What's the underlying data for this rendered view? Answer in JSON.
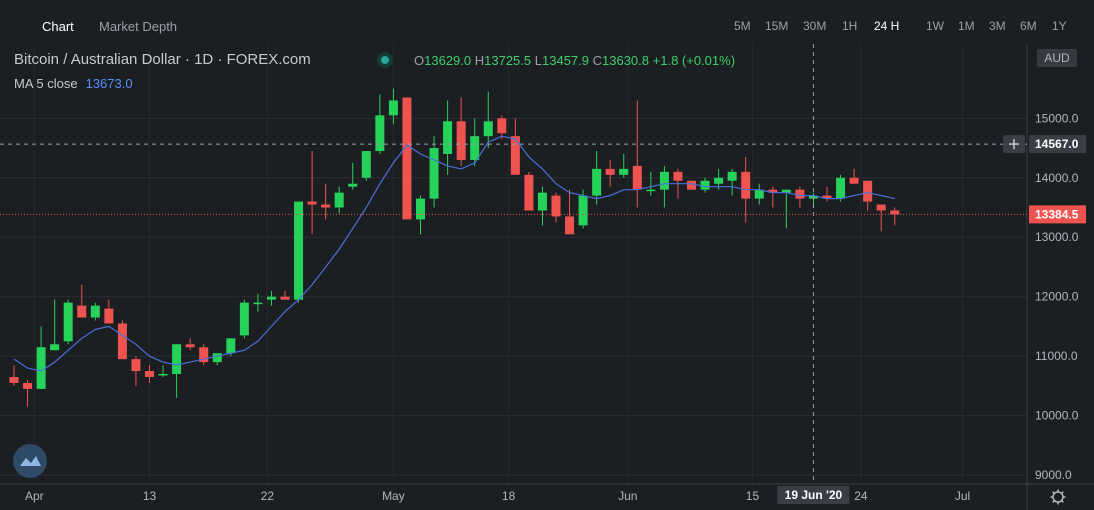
{
  "tabs": [
    {
      "label": "Chart",
      "active": true
    },
    {
      "label": "Market Depth",
      "active": false
    }
  ],
  "timeframes": [
    "5M",
    "15M",
    "30M",
    "1H",
    "24 H",
    "1W",
    "1M",
    "3M",
    "6M",
    "1Y"
  ],
  "active_timeframe": "24 H",
  "symbol_title": "Bitcoin / Australian Dollar · 1D · FOREX.com",
  "ohlc": {
    "o_label": "O",
    "o": "13629.0",
    "h_label": "H",
    "h": "13725.5",
    "l_label": "L",
    "l": "13457.9",
    "c_label": "C",
    "c": "13630.8",
    "change": "+1.8 (+0.01%)"
  },
  "ma_label": "MA 5 close",
  "ma_value": "13673.0",
  "currency_badge": "AUD",
  "crosshair_price": "14567.0",
  "last_price": "13384.5",
  "crosshair_date": "19 Jun '20",
  "colors": {
    "up": "#26d35a",
    "down": "#ef5350",
    "ma": "#4a6fdc",
    "bg": "#1c1f22"
  },
  "chart_data": {
    "type": "candlestick",
    "y_ticks": [
      "9000.0",
      "10000.0",
      "11000.0",
      "12000.0",
      "13000.0",
      "14000.0",
      "15000.0"
    ],
    "ylim": [
      8850,
      16250
    ],
    "x_ticks": [
      "Apr",
      "13",
      "22",
      "May",
      "18",
      "Jun",
      "15",
      "24",
      "Jul"
    ],
    "series": [
      {
        "name": "OHLC",
        "values": [
          [
            10650,
            10850,
            10500,
            10550
          ],
          [
            10550,
            10600,
            10150,
            10450
          ],
          [
            10450,
            11500,
            10450,
            11150
          ],
          [
            11100,
            11950,
            11100,
            11200
          ],
          [
            11250,
            11950,
            11200,
            11900
          ],
          [
            11850,
            12200,
            11700,
            11650
          ],
          [
            11650,
            11900,
            11600,
            11850
          ],
          [
            11800,
            11950,
            11600,
            11550
          ],
          [
            11550,
            11600,
            11000,
            10950
          ],
          [
            10950,
            11000,
            10500,
            10750
          ],
          [
            10750,
            10850,
            10550,
            10650
          ],
          [
            10700,
            10850,
            10650,
            10700
          ],
          [
            10700,
            11200,
            10300,
            11200
          ],
          [
            11200,
            11300,
            11100,
            11150
          ],
          [
            11150,
            11200,
            10850,
            10900
          ],
          [
            10900,
            11000,
            10850,
            11050
          ],
          [
            11050,
            11300,
            11000,
            11300
          ],
          [
            11350,
            11950,
            11300,
            11900
          ],
          [
            11900,
            12050,
            11750,
            11900
          ],
          [
            11950,
            12100,
            11850,
            12000
          ],
          [
            12000,
            12100,
            11950,
            11950
          ],
          [
            11950,
            13600,
            11900,
            13600
          ],
          [
            13600,
            14450,
            13050,
            13550
          ],
          [
            13550,
            13900,
            13300,
            13500
          ],
          [
            13500,
            13850,
            13400,
            13750
          ],
          [
            13850,
            14250,
            13800,
            13900
          ],
          [
            14000,
            14400,
            13950,
            14450
          ],
          [
            14450,
            15400,
            14400,
            15050
          ],
          [
            15050,
            15500,
            14900,
            15300
          ],
          [
            15350,
            15350,
            13300,
            13300
          ],
          [
            13300,
            13700,
            13050,
            13650
          ],
          [
            13650,
            14700,
            13500,
            14500
          ],
          [
            14400,
            15300,
            14050,
            14950
          ],
          [
            14950,
            15350,
            14200,
            14300
          ],
          [
            14300,
            15000,
            14200,
            14700
          ],
          [
            14700,
            15450,
            14500,
            14950
          ],
          [
            15000,
            15050,
            14650,
            14750
          ],
          [
            14700,
            15000,
            14400,
            14050
          ],
          [
            14050,
            14100,
            13600,
            13450
          ],
          [
            13450,
            13850,
            13200,
            13750
          ],
          [
            13700,
            13750,
            13250,
            13350
          ],
          [
            13350,
            13800,
            13100,
            13050
          ],
          [
            13200,
            13800,
            13150,
            13700
          ],
          [
            13700,
            14450,
            13550,
            14150
          ],
          [
            14150,
            14300,
            13850,
            14050
          ],
          [
            14050,
            14400,
            14000,
            14150
          ],
          [
            14200,
            15300,
            13500,
            13800
          ],
          [
            13800,
            14100,
            13700,
            13800
          ],
          [
            13800,
            14200,
            13500,
            14100
          ],
          [
            14100,
            14150,
            13650,
            13950
          ],
          [
            13950,
            13950,
            13800,
            13800
          ],
          [
            13800,
            14000,
            13750,
            13950
          ],
          [
            13900,
            14150,
            13800,
            14000
          ],
          [
            13950,
            14150,
            13700,
            14100
          ],
          [
            14100,
            14350,
            13250,
            13650
          ],
          [
            13650,
            13900,
            13550,
            13800
          ],
          [
            13800,
            13850,
            13500,
            13750
          ],
          [
            13750,
            13800,
            13150,
            13800
          ],
          [
            13800,
            13850,
            13500,
            13650
          ],
          [
            13650,
            13750,
            13500,
            13700
          ],
          [
            13700,
            13850,
            13600,
            13650
          ],
          [
            13650,
            14050,
            13600,
            14000
          ],
          [
            14000,
            14150,
            13900,
            13900
          ],
          [
            13950,
            13950,
            13450,
            13600
          ],
          [
            13550,
            13500,
            13100,
            13450
          ],
          [
            13450,
            13500,
            13200,
            13384.5
          ]
        ]
      },
      {
        "name": "MA 5 close",
        "values": [
          10950,
          10800,
          10750,
          10900,
          11100,
          11300,
          11450,
          11500,
          11350,
          11200,
          11000,
          10900,
          10850,
          10900,
          10950,
          11000,
          11050,
          11100,
          11250,
          11500,
          11750,
          11950,
          12200,
          12500,
          12800,
          13150,
          13500,
          13900,
          14250,
          14550,
          14400,
          14300,
          14200,
          14150,
          14250,
          14600,
          14700,
          14650,
          14350,
          14150,
          13900,
          13750,
          13700,
          13650,
          13700,
          13800,
          13800,
          13850,
          13900,
          13900,
          13900,
          13850,
          13850,
          13850,
          13800,
          13800,
          13750,
          13750,
          13700,
          13700,
          13650,
          13650,
          13700,
          13750,
          13700,
          13650
        ]
      }
    ]
  }
}
